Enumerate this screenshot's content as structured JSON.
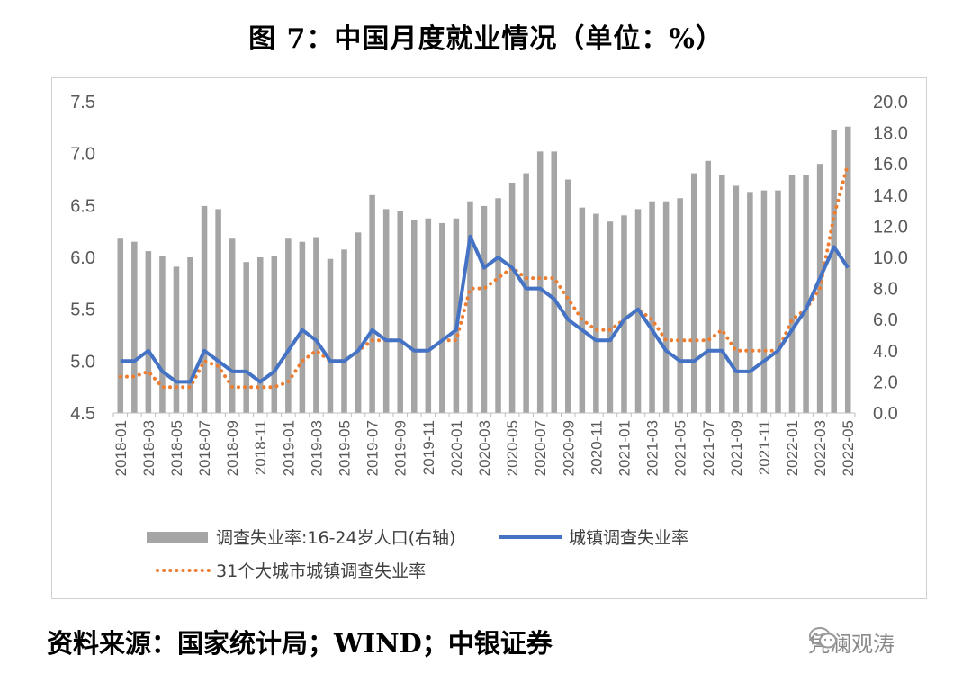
{
  "title": "图 7：中国月度就业情况（单位：%）",
  "source": "资料来源：国家统计局；WIND；中银证券",
  "watermark": "凭澜观涛",
  "chart_data": {
    "type": "bar+line",
    "title": "图 7：中国月度就业情况（单位：%）",
    "categories": [
      "2018-01",
      "2018-02",
      "2018-03",
      "2018-04",
      "2018-05",
      "2018-06",
      "2018-07",
      "2018-08",
      "2018-09",
      "2018-10",
      "2018-11",
      "2018-12",
      "2019-01",
      "2019-02",
      "2019-03",
      "2019-04",
      "2019-05",
      "2019-06",
      "2019-07",
      "2019-08",
      "2019-09",
      "2019-10",
      "2019-11",
      "2019-12",
      "2020-01",
      "2020-02",
      "2020-03",
      "2020-04",
      "2020-05",
      "2020-06",
      "2020-07",
      "2020-08",
      "2020-09",
      "2020-10",
      "2020-11",
      "2020-12",
      "2021-01",
      "2021-02",
      "2021-03",
      "2021-04",
      "2021-05",
      "2021-06",
      "2021-07",
      "2021-08",
      "2021-09",
      "2021-10",
      "2021-11",
      "2021-12",
      "2022-01",
      "2022-02",
      "2022-03",
      "2022-04",
      "2022-05"
    ],
    "x_tick_labels": [
      "2018-01",
      "2018-03",
      "2018-05",
      "2018-07",
      "2018-09",
      "2018-11",
      "2019-01",
      "2019-03",
      "2019-05",
      "2019-07",
      "2019-09",
      "2019-11",
      "2020-01",
      "2020-03",
      "2020-05",
      "2020-07",
      "2020-09",
      "2020-11",
      "2021-01",
      "2021-03",
      "2021-05",
      "2021-07",
      "2021-09",
      "2021-11",
      "2022-01",
      "2022-03",
      "2022-05"
    ],
    "left_axis": {
      "ylim": [
        4.5,
        7.5
      ],
      "ticks": [
        "4.5",
        "5.0",
        "5.5",
        "6.0",
        "6.5",
        "7.0",
        "7.5"
      ]
    },
    "right_axis": {
      "ylim": [
        0.0,
        20.0
      ],
      "ticks": [
        "0.0",
        "2.0",
        "4.0",
        "6.0",
        "8.0",
        "10.0",
        "12.0",
        "14.0",
        "16.0",
        "18.0",
        "20.0"
      ]
    },
    "series": [
      {
        "name": "调查失业率:16-24岁人口(右轴)",
        "type": "bar",
        "axis": "right",
        "color": "#a5a5a5",
        "values": [
          11.2,
          11.0,
          10.4,
          10.1,
          9.4,
          10.0,
          13.3,
          13.1,
          11.2,
          9.7,
          10.0,
          10.1,
          11.2,
          11.0,
          11.3,
          9.9,
          10.5,
          11.6,
          14.0,
          13.1,
          13.0,
          12.4,
          12.5,
          12.2,
          12.5,
          13.6,
          13.3,
          13.8,
          14.8,
          15.4,
          16.8,
          16.8,
          15.0,
          13.2,
          12.8,
          12.3,
          12.7,
          13.1,
          13.6,
          13.6,
          13.8,
          15.4,
          16.2,
          15.3,
          14.6,
          14.2,
          14.3,
          14.3,
          15.3,
          15.3,
          16.0,
          18.2,
          18.4
        ]
      },
      {
        "name": "城镇调查失业率",
        "type": "line",
        "axis": "left",
        "color": "#4472c4",
        "values": [
          5.0,
          5.0,
          5.1,
          4.9,
          4.8,
          4.8,
          5.1,
          5.0,
          4.9,
          4.9,
          4.8,
          4.9,
          5.1,
          5.3,
          5.2,
          5.0,
          5.0,
          5.1,
          5.3,
          5.2,
          5.2,
          5.1,
          5.1,
          5.2,
          5.3,
          6.2,
          5.9,
          6.0,
          5.9,
          5.7,
          5.7,
          5.6,
          5.4,
          5.3,
          5.2,
          5.2,
          5.4,
          5.5,
          5.3,
          5.1,
          5.0,
          5.0,
          5.1,
          5.1,
          4.9,
          4.9,
          5.0,
          5.1,
          5.3,
          5.5,
          5.8,
          6.1,
          5.9
        ]
      },
      {
        "name": "31个大城市城镇调查失业率",
        "type": "dotted-line",
        "axis": "left",
        "color": "#ed7d31",
        "values": [
          4.85,
          4.85,
          4.9,
          4.75,
          4.75,
          4.75,
          5.0,
          4.95,
          4.75,
          4.75,
          4.75,
          4.75,
          4.8,
          5.0,
          5.1,
          5.0,
          5.0,
          5.1,
          5.2,
          5.2,
          5.2,
          5.1,
          5.1,
          5.2,
          5.2,
          5.7,
          5.7,
          5.8,
          5.9,
          5.8,
          5.8,
          5.8,
          5.6,
          5.4,
          5.3,
          5.3,
          5.4,
          5.5,
          5.4,
          5.2,
          5.2,
          5.2,
          5.2,
          5.3,
          5.1,
          5.1,
          5.1,
          5.1,
          5.4,
          5.5,
          5.7,
          6.4,
          6.9
        ]
      }
    ]
  }
}
